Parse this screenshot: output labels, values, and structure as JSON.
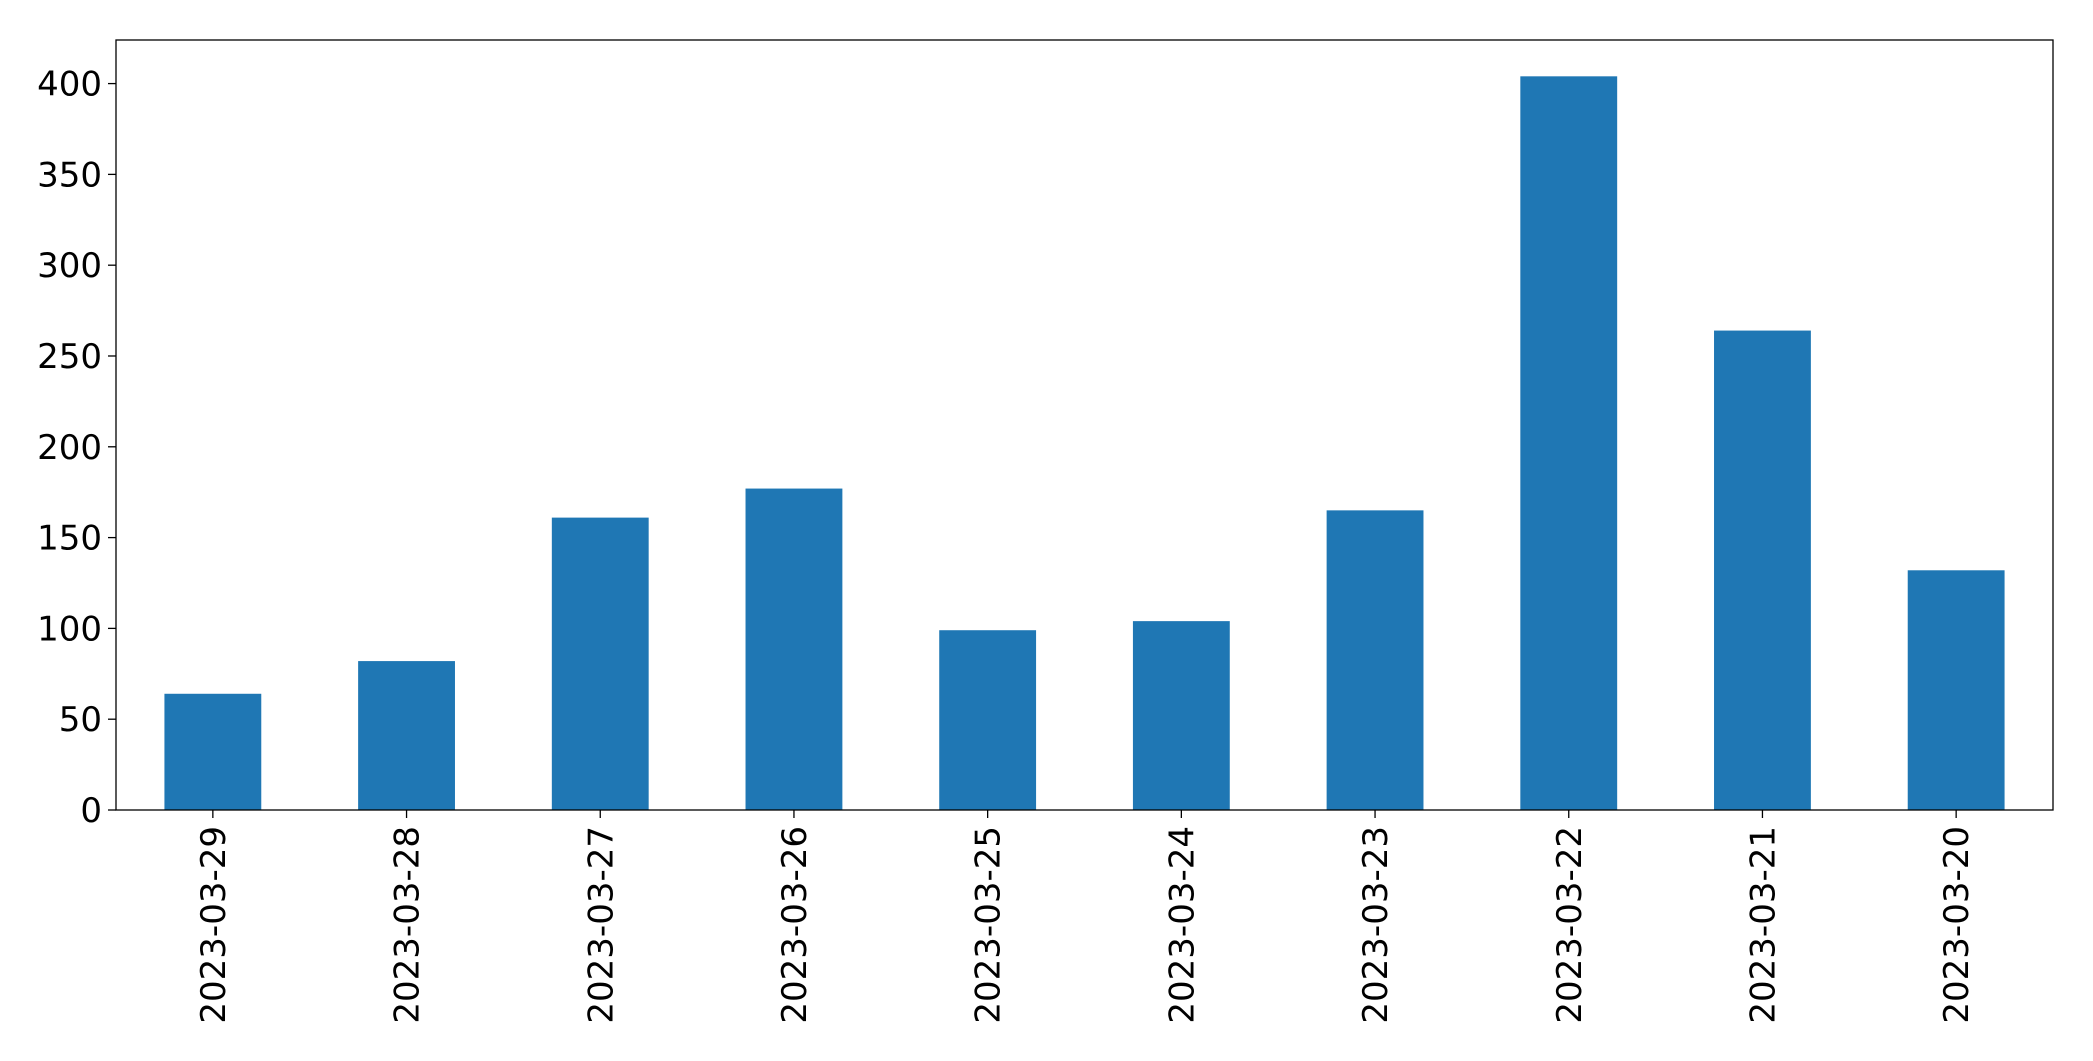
{
  "chart_data": {
    "type": "bar",
    "categories": [
      "2023-03-29",
      "2023-03-28",
      "2023-03-27",
      "2023-03-26",
      "2023-03-25",
      "2023-03-24",
      "2023-03-23",
      "2023-03-22",
      "2023-03-21",
      "2023-03-20"
    ],
    "values": [
      64,
      82,
      161,
      177,
      99,
      104,
      165,
      404,
      264,
      132
    ],
    "color": "#1f77b4",
    "ylim": [
      0,
      424
    ],
    "yticks": [
      0,
      50,
      100,
      150,
      200,
      250,
      300,
      350,
      400
    ],
    "grid": false
  }
}
